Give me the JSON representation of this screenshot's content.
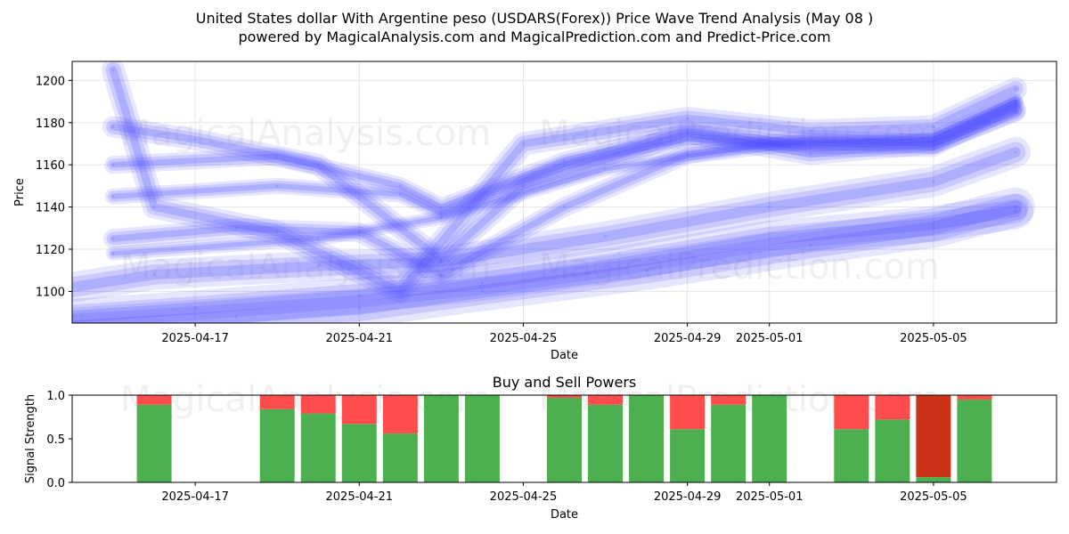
{
  "title_line1": "United States dollar With Argentine peso (USDARS(Forex)) Price Wave Trend Analysis (May 08 )",
  "title_line2": "powered by MagicalAnalysis.com and MagicalPrediction.com and Predict-Price.com",
  "watermarks": [
    "MagicalAnalysis.com",
    "MagicalPrediction.com"
  ],
  "colors": {
    "wave": "#4d4dff",
    "buy": "#4caf50",
    "sell": "#ff4d4d",
    "sell_strong": "#cc3218"
  },
  "chart_data": [
    {
      "type": "line",
      "xlabel": "Date",
      "ylabel": "Price",
      "x_ticks": [
        "2025-04-17",
        "2025-04-21",
        "2025-04-25",
        "2025-04-29",
        "2025-05-01",
        "2025-05-05"
      ],
      "y_ticks": [
        1100,
        1120,
        1140,
        1160,
        1180,
        1200
      ],
      "xlim": [
        "2025-04-14",
        "2025-05-08"
      ],
      "ylim": [
        1085,
        1209
      ],
      "grid": true,
      "series": [
        {
          "x": [
            "2025-04-14",
            "2025-04-16",
            "2025-04-20",
            "2025-04-23",
            "2025-04-27",
            "2025-05-01",
            "2025-05-05",
            "2025-05-07"
          ],
          "values": [
            1102,
            1108,
            1112,
            1114,
            1126,
            1140,
            1152,
            1166
          ]
        },
        {
          "x": [
            "2025-04-14",
            "2025-04-17",
            "2025-04-21",
            "2025-04-24",
            "2025-04-27",
            "2025-05-01",
            "2025-05-05",
            "2025-05-07"
          ],
          "values": [
            1088,
            1092,
            1098,
            1104,
            1112,
            1125,
            1132,
            1138
          ]
        },
        {
          "x": [
            "2025-04-14",
            "2025-04-18",
            "2025-04-21",
            "2025-04-24",
            "2025-04-28",
            "2025-05-02",
            "2025-05-05",
            "2025-05-07"
          ],
          "values": [
            1083,
            1088,
            1092,
            1100,
            1110,
            1122,
            1130,
            1140
          ]
        },
        {
          "x": [
            "2025-04-15",
            "2025-04-18",
            "2025-04-21",
            "2025-04-23",
            "2025-04-26",
            "2025-04-29",
            "2025-05-02",
            "2025-05-05",
            "2025-05-07"
          ],
          "values": [
            1125,
            1130,
            1128,
            1108,
            1140,
            1165,
            1172,
            1170,
            1185
          ]
        },
        {
          "x": [
            "2025-04-15",
            "2025-04-19",
            "2025-04-22",
            "2025-04-23",
            "2025-04-26",
            "2025-04-29",
            "2025-05-02",
            "2025-05-05",
            "2025-05-07"
          ],
          "values": [
            1145,
            1150,
            1146,
            1137,
            1160,
            1172,
            1170,
            1172,
            1190
          ]
        },
        {
          "x": [
            "2025-04-15",
            "2025-04-19",
            "2025-04-22",
            "2025-04-23",
            "2025-04-26",
            "2025-04-29",
            "2025-05-02",
            "2025-05-05",
            "2025-05-07"
          ],
          "values": [
            1160,
            1164,
            1150,
            1140,
            1162,
            1176,
            1168,
            1168,
            1188
          ]
        },
        {
          "x": [
            "2025-04-15",
            "2025-04-17",
            "2025-04-20",
            "2025-04-23",
            "2025-04-25",
            "2025-04-29",
            "2025-05-02",
            "2025-05-05",
            "2025-05-07"
          ],
          "values": [
            1178,
            1172,
            1160,
            1115,
            1150,
            1175,
            1165,
            1170,
            1186
          ]
        },
        {
          "x": [
            "2025-04-15",
            "2025-04-16",
            "2025-04-19",
            "2025-04-22",
            "2025-04-25",
            "2025-04-29",
            "2025-05-02",
            "2025-05-05",
            "2025-05-07"
          ],
          "values": [
            1205,
            1140,
            1128,
            1100,
            1170,
            1182,
            1176,
            1178,
            1196
          ]
        },
        {
          "x": [
            "2025-04-15",
            "2025-04-20",
            "2025-04-23",
            "2025-04-27",
            "2025-05-01",
            "2025-05-05",
            "2025-05-07"
          ],
          "values": [
            1118,
            1125,
            1135,
            1158,
            1170,
            1173,
            1190
          ]
        }
      ]
    },
    {
      "type": "bar",
      "title": "Buy and Sell Powers",
      "xlabel": "Date",
      "ylabel": "Signal Strength",
      "x_ticks": [
        "2025-04-17",
        "2025-04-21",
        "2025-04-25",
        "2025-04-29",
        "2025-05-01",
        "2025-05-05"
      ],
      "y_ticks": [
        0.0,
        0.5,
        1.0
      ],
      "ylim": [
        0,
        1
      ],
      "categories": [
        "2025-04-16",
        "2025-04-19",
        "2025-04-20",
        "2025-04-21",
        "2025-04-22",
        "2025-04-23",
        "2025-04-24",
        "2025-04-26",
        "2025-04-27",
        "2025-04-28",
        "2025-04-29",
        "2025-04-30",
        "2025-05-01",
        "2025-05-03",
        "2025-05-04",
        "2025-05-05",
        "2025-05-06"
      ],
      "series": [
        {
          "name": "Buy",
          "values": [
            0.89,
            0.84,
            0.79,
            0.67,
            0.56,
            1.0,
            1.0,
            0.97,
            0.89,
            1.0,
            0.61,
            0.89,
            1.0,
            0.61,
            0.72,
            0.06,
            0.95
          ]
        },
        {
          "name": "Sell",
          "values": [
            0.11,
            0.16,
            0.21,
            0.33,
            0.44,
            0.0,
            0.0,
            0.03,
            0.11,
            0.0,
            0.39,
            0.11,
            0.0,
            0.39,
            0.28,
            0.94,
            0.05
          ]
        }
      ]
    }
  ]
}
